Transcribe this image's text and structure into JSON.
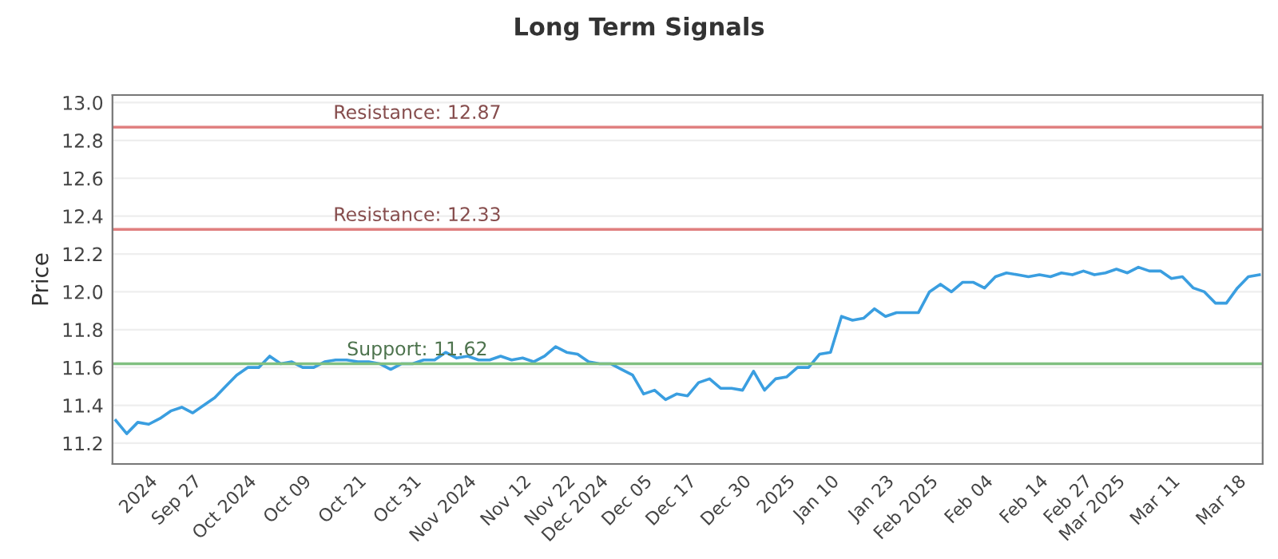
{
  "chart_data": {
    "type": "line",
    "title": "Long Term Signals",
    "ylabel": "Price",
    "ylim": [
      11.09,
      13.04
    ],
    "categories": [
      null,
      null,
      null,
      "2024",
      null,
      null,
      null,
      "Sep 27",
      null,
      null,
      null,
      null,
      "Oct 2024",
      null,
      null,
      null,
      null,
      "Oct 09",
      null,
      null,
      null,
      null,
      "Oct 21",
      null,
      null,
      null,
      null,
      "Oct 31",
      null,
      null,
      null,
      null,
      "Nov 2024",
      null,
      null,
      null,
      null,
      "Nov 12",
      null,
      null,
      null,
      "Nov 22",
      null,
      null,
      "Dec 2024",
      null,
      null,
      null,
      "Dec 05",
      null,
      null,
      null,
      "Dec 17",
      null,
      null,
      null,
      null,
      "Dec 30",
      null,
      null,
      null,
      "2025",
      null,
      null,
      null,
      "Jan 10",
      null,
      null,
      null,
      null,
      "Jan 23",
      null,
      null,
      null,
      "Feb 2025",
      null,
      null,
      null,
      null,
      "Feb 04",
      null,
      null,
      null,
      null,
      "Feb 14",
      null,
      null,
      null,
      "Feb 27",
      null,
      null,
      "Mar 2025",
      null,
      null,
      null,
      null,
      "Mar 11",
      null,
      null,
      null,
      null,
      null,
      "Mar 18",
      null,
      null
    ],
    "yticks": [
      {
        "value": 11.2,
        "label": "11.2"
      },
      {
        "value": 11.4,
        "label": "11.4"
      },
      {
        "value": 11.6,
        "label": "11.6"
      },
      {
        "value": 11.8,
        "label": "11.8"
      },
      {
        "value": 12.0,
        "label": "12.0"
      },
      {
        "value": 12.2,
        "label": "12.2"
      },
      {
        "value": 12.4,
        "label": "12.4"
      },
      {
        "value": 12.6,
        "label": "12.6"
      },
      {
        "value": 12.8,
        "label": "12.8"
      },
      {
        "value": 13.0,
        "label": "13.0"
      }
    ],
    "grid": "y",
    "series": [
      {
        "color": "#3a9ee0",
        "values": [
          11.32,
          11.25,
          11.31,
          11.3,
          11.33,
          11.37,
          11.39,
          11.36,
          11.4,
          11.44,
          11.5,
          11.56,
          11.6,
          11.6,
          11.66,
          11.62,
          11.63,
          11.6,
          11.6,
          11.63,
          11.64,
          11.64,
          11.63,
          11.63,
          11.62,
          11.59,
          11.62,
          11.62,
          11.64,
          11.64,
          11.68,
          11.65,
          11.66,
          11.64,
          11.64,
          11.66,
          11.64,
          11.65,
          11.63,
          11.66,
          11.71,
          11.68,
          11.67,
          11.63,
          11.62,
          11.62,
          11.59,
          11.56,
          11.46,
          11.48,
          11.43,
          11.46,
          11.45,
          11.52,
          11.54,
          11.49,
          11.49,
          11.48,
          11.58,
          11.48,
          11.54,
          11.55,
          11.6,
          11.6,
          11.67,
          11.68,
          11.87,
          11.85,
          11.86,
          11.91,
          11.87,
          11.89,
          11.89,
          11.89,
          12.0,
          12.04,
          12.0,
          12.05,
          12.05,
          12.02,
          12.08,
          12.1,
          12.09,
          12.08,
          12.09,
          12.08,
          12.1,
          12.09,
          12.11,
          12.09,
          12.1,
          12.12,
          12.1,
          12.13,
          12.11,
          12.11,
          12.07,
          12.08,
          12.02,
          12.0,
          11.94,
          11.94,
          12.02,
          12.08,
          12.09
        ]
      }
    ],
    "ref_lines": [
      {
        "axis": "y",
        "value": 12.87,
        "label": "Resistance: 12.87",
        "color": "#e08080"
      },
      {
        "axis": "y",
        "value": 12.33,
        "label": "Resistance: 12.33",
        "color": "#e08080"
      },
      {
        "axis": "y",
        "value": 11.62,
        "label": "Support: 11.62",
        "color": "#80c080"
      }
    ]
  }
}
